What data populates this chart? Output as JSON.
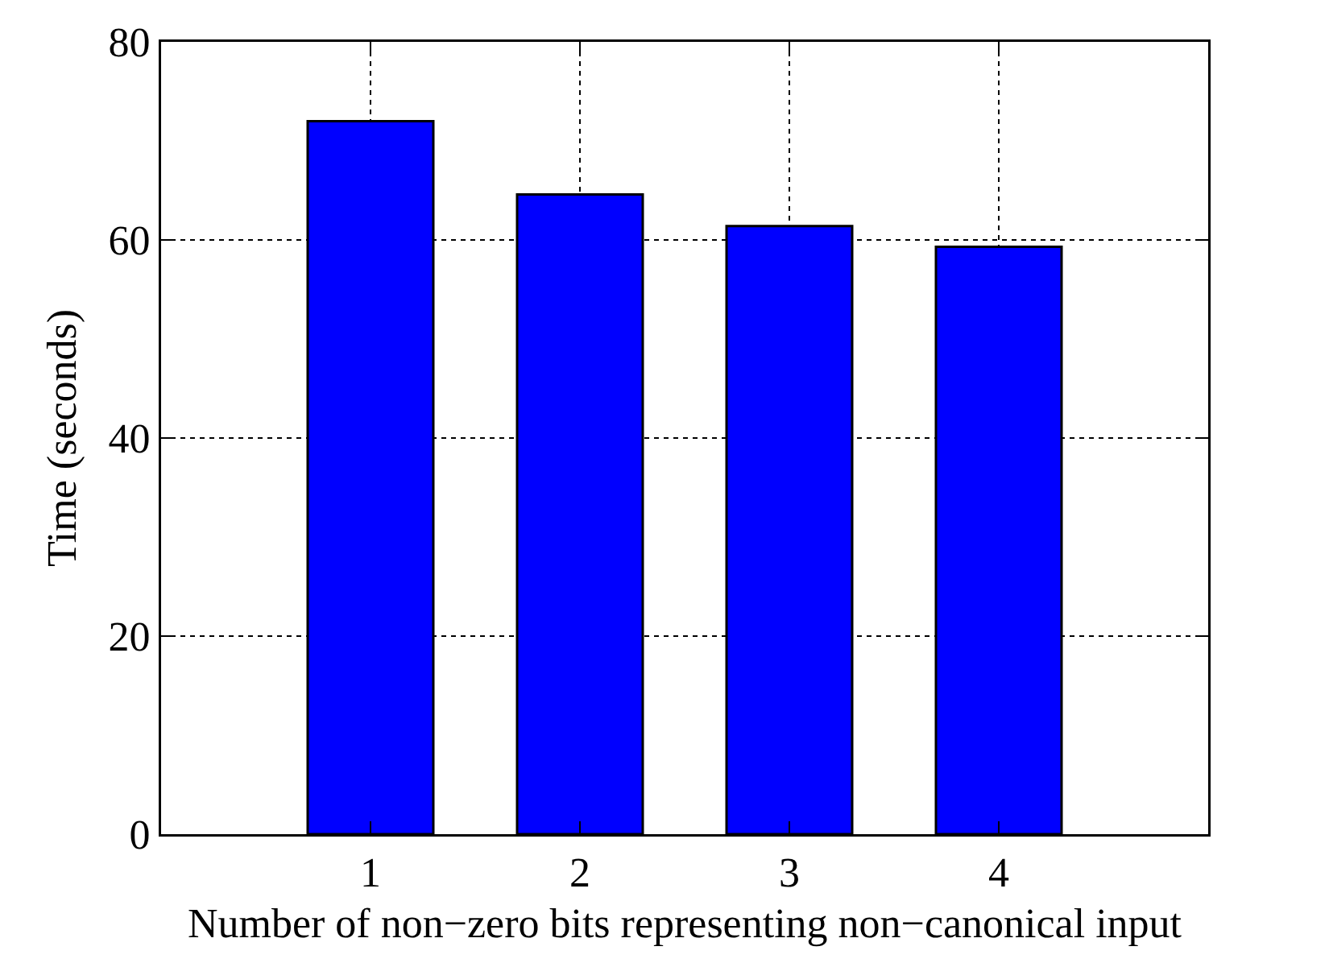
{
  "chart_data": {
    "type": "bar",
    "xlabel": "Number of non−zero bits representing non−canonical input",
    "ylabel": "Time (seconds)",
    "x": [
      1,
      2,
      3,
      4
    ],
    "values": [
      72.0,
      64.6,
      61.4,
      59.3
    ],
    "color": "#0000ff",
    "xlim": [
      0,
      5
    ],
    "xticks": [
      1,
      2,
      3,
      4
    ],
    "ylim": [
      0,
      80
    ],
    "yticks": [
      0,
      20,
      40,
      60,
      80
    ],
    "grid": true
  }
}
